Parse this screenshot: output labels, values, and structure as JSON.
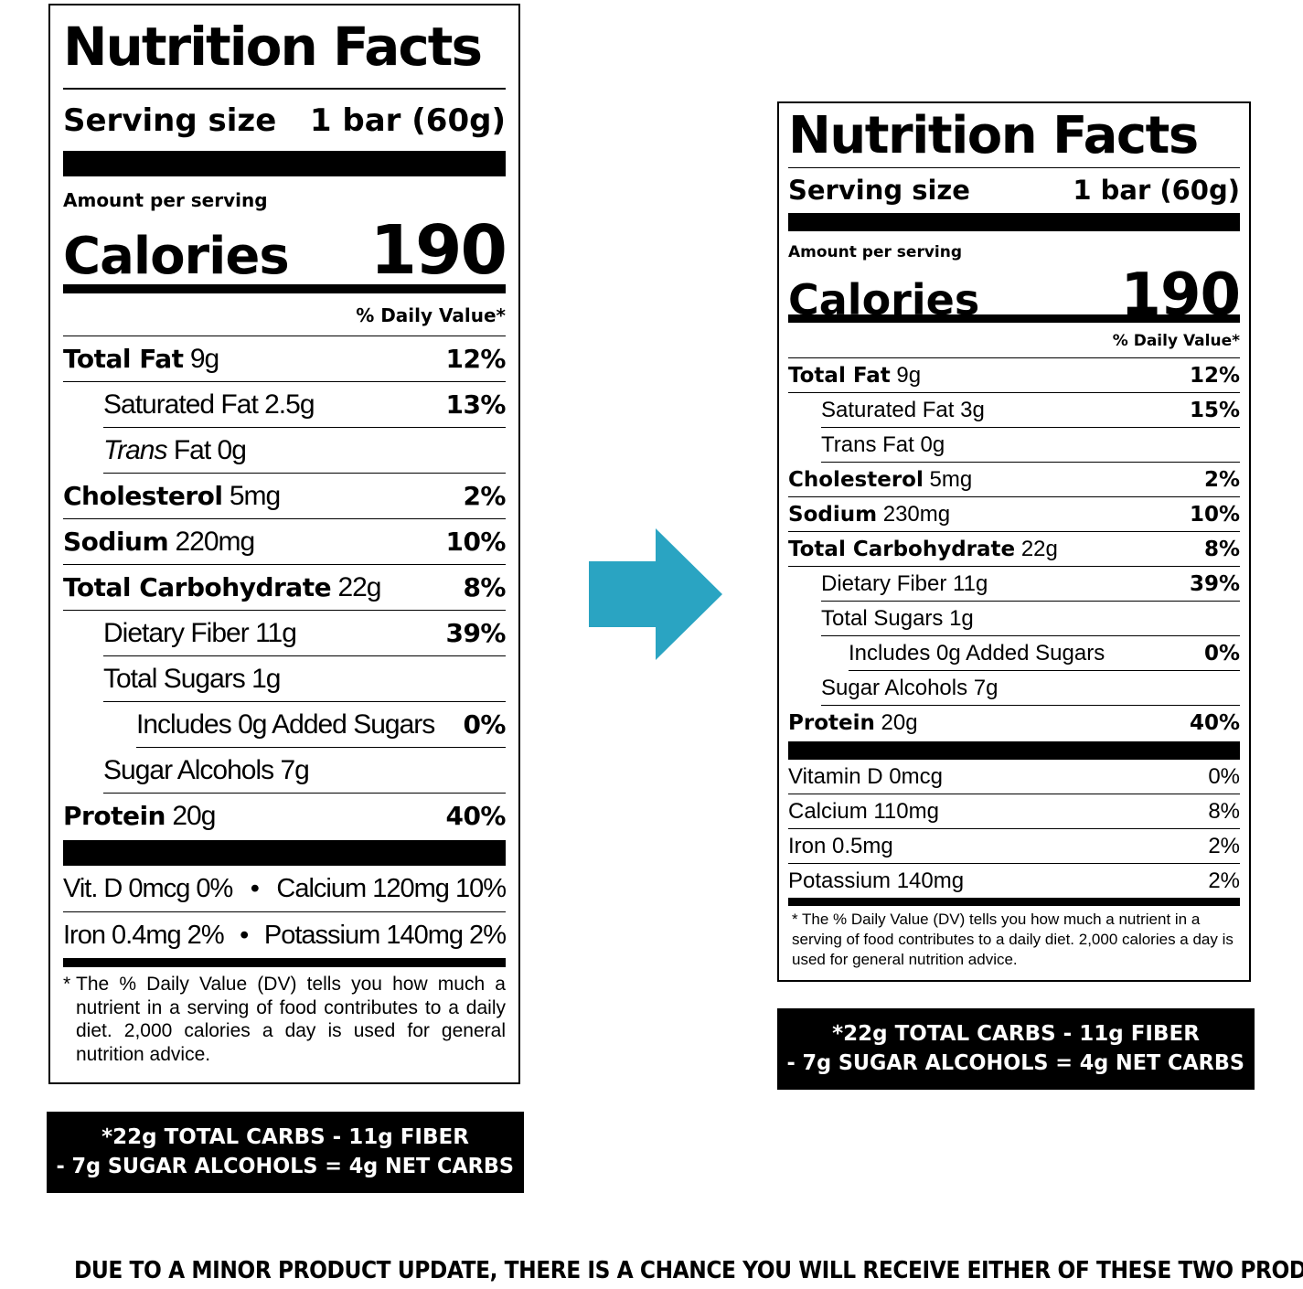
{
  "old_label": {
    "title": "Nutrition Facts",
    "serving_label": "Serving size",
    "serving_value": "1 bar (60g)",
    "amount_per_serving": "Amount per serving",
    "calories_label": "Calories",
    "calories_value": "190",
    "daily_value_header": "% Daily Value*",
    "nutrients": [
      {
        "name": "Total Fat",
        "amount": "9g",
        "dv": "12%"
      },
      {
        "name": "Saturated Fat",
        "amount": "2.5g",
        "dv": "13%"
      },
      {
        "name_italic": "Trans",
        "name": "Fat",
        "amount": "0g",
        "dv": ""
      },
      {
        "name": "Cholesterol",
        "amount": "5mg",
        "dv": "2%"
      },
      {
        "name": "Sodium",
        "amount": "220mg",
        "dv": "10%"
      },
      {
        "name": "Total Carbohydrate",
        "amount": "22g",
        "dv": "8%"
      },
      {
        "name": "Dietary Fiber",
        "amount": "11g",
        "dv": "39%"
      },
      {
        "name": "Total Sugars",
        "amount": "1g",
        "dv": ""
      },
      {
        "name": "Includes 0g Added Sugars",
        "amount": "",
        "dv": "0%"
      },
      {
        "name": "Sugar Alcohols",
        "amount": "7g",
        "dv": ""
      },
      {
        "name": "Protein",
        "amount": "20g",
        "dv": "40%"
      }
    ],
    "vitamins": [
      {
        "left": "Vit. D 0mcg 0%",
        "right": "Calcium 120mg 10%"
      },
      {
        "left": "Iron 0.4mg 2%",
        "right": "Potassium 140mg 2%"
      }
    ],
    "bullet": "•",
    "footnote_star": "*",
    "footnote": "The % Daily Value (DV) tells you how much a nutrient in a serving of food contributes to a daily diet. 2,000 calories a day is used for general nutrition advice.",
    "net_carbs_line1": "*22g TOTAL CARBS - 11g FIBER",
    "net_carbs_line2": "- 7g SUGAR ALCOHOLS = 4g NET CARBS"
  },
  "new_label": {
    "title": "Nutrition Facts",
    "serving_label": "Serving size",
    "serving_value": "1 bar (60g)",
    "amount_per_serving": "Amount per serving",
    "calories_label": "Calories",
    "calories_value": "190",
    "daily_value_header": "% Daily Value*",
    "nutrients": [
      {
        "name": "Total Fat",
        "amount": "9g",
        "dv": "12%"
      },
      {
        "name": "Saturated Fat",
        "amount": "3g",
        "dv": "15%"
      },
      {
        "name": "Trans Fat",
        "amount": "0g",
        "dv": ""
      },
      {
        "name": "Cholesterol",
        "amount": "5mg",
        "dv": "2%"
      },
      {
        "name": "Sodium",
        "amount": "230mg",
        "dv": "10%"
      },
      {
        "name": "Total Carbohydrate",
        "amount": "22g",
        "dv": "8%"
      },
      {
        "name": "Dietary Fiber",
        "amount": "11g",
        "dv": "39%"
      },
      {
        "name": "Total Sugars",
        "amount": "1g",
        "dv": ""
      },
      {
        "name": "Includes 0g Added Sugars",
        "amount": "",
        "dv": "0%"
      },
      {
        "name": "Sugar Alcohols",
        "amount": "7g",
        "dv": ""
      },
      {
        "name": "Protein",
        "amount": "20g",
        "dv": "40%"
      }
    ],
    "vitamins": [
      {
        "name": "Vitamin D 0mcg",
        "dv": "0%"
      },
      {
        "name": "Calcium 110mg",
        "dv": "8%"
      },
      {
        "name": "Iron 0.5mg",
        "dv": "2%"
      },
      {
        "name": "Potassium 140mg",
        "dv": "2%"
      }
    ],
    "footnote": "* The % Daily Value (DV) tells you how much a nutrient in a serving of food contributes to a daily diet. 2,000 calories a day is used for general nutrition advice.",
    "net_carbs_line1": "*22g TOTAL CARBS - 11g FIBER",
    "net_carbs_line2": "- 7g SUGAR ALCOHOLS = 4g NET CARBS"
  },
  "arrow_color": "#2aa4c2",
  "arrow_icon": "right-arrow-icon",
  "notice": "DUE TO A MINOR PRODUCT UPDATE, THERE IS A CHANCE YOU WILL RECEIVE EITHER OF THESE TWO PRODUCTS"
}
